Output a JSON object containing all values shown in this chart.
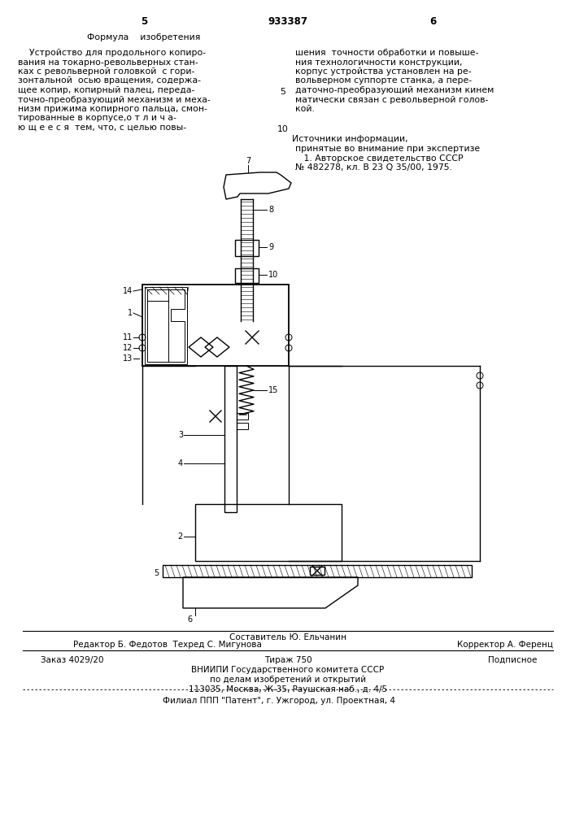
{
  "page_num_left": "5",
  "page_num_center": "933387",
  "page_num_right": "6",
  "formula_header": "Формула    изобретения",
  "left_col_lines": [
    "    Устройство для продольного копиро-",
    "вания на токарно-револьверных стан-",
    "ках с револьверной головкой  с гори-",
    "зонтальной  осью вращения, содержа-",
    "щее копир, копирный палец, переда-",
    "точно-преобразующий механизм и меха-",
    "низм прижима копирного пальца, смон-",
    "тированные в корпусе,о т л и ч а-",
    "ю щ е е с я  тем, что, с целью повы-"
  ],
  "right_col_lines": [
    "шения  точности обработки и повыше-",
    "ния технологичности конструкции,",
    "корпус устройства установлен на ре-",
    "вольверном суппорте станка, а пере-",
    "даточно-преобразующий механизм кинем",
    "матически связан с револьверной голов-",
    "кой."
  ],
  "line_num_5": "5",
  "line_num_10": "10",
  "sources_header": "Источники информации,",
  "sources_lines": [
    "принятые во внимание при экспертизе",
    "   1. Авторское свидетельство СССР",
    "№ 482278, кл. В 23 Q 35/00, 1975."
  ],
  "footer_composer": "Составитель Ю. Ельчанин",
  "footer_editor": "Редактор Б. Федотов  Техред С. Мигунова",
  "footer_corrector": "Корректор А. Ференц",
  "footer_order": "Заказ 4029/20",
  "footer_tirazh": "Тираж 750",
  "footer_podpisnoe": "Подписное",
  "footer_vniipii": "ВНИИПИ Государственного комитета СССР",
  "footer_affairs": "по делам изобретений и открытий",
  "footer_address": "113035, Москва, Ж-35, Раушская наб., д. 4/5",
  "footer_filial": "Филиал ППП \"Патент\", г. Ужгород, ул. Проектная, 4",
  "bg_color": "#ffffff",
  "text_color": "#000000"
}
